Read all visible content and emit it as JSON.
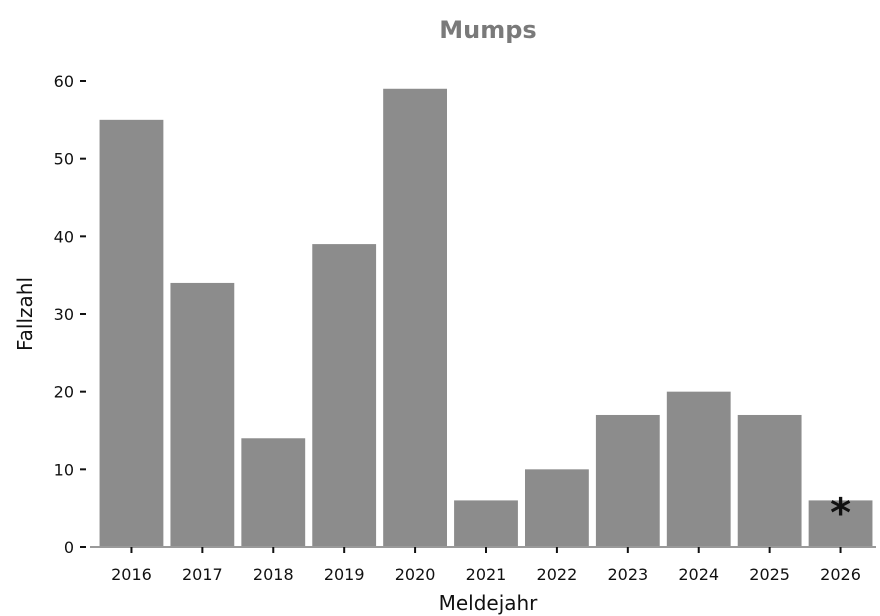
{
  "chart_data": {
    "type": "bar",
    "title": "Mumps",
    "xlabel": "Meldejahr",
    "ylabel": "Fallzahl",
    "categories": [
      "2016",
      "2017",
      "2018",
      "2019",
      "2020",
      "2021",
      "2022",
      "2023",
      "2024",
      "2025",
      "2026"
    ],
    "values": [
      55,
      34,
      14,
      39,
      59,
      6,
      10,
      17,
      20,
      17,
      6
    ],
    "ylim": [
      0,
      60
    ],
    "yticks": [
      0,
      10,
      20,
      30,
      40,
      50,
      60
    ],
    "grid": false,
    "bar_color": "#8c8c8c",
    "annotations": [
      {
        "category": "2026",
        "text": "*"
      }
    ]
  }
}
